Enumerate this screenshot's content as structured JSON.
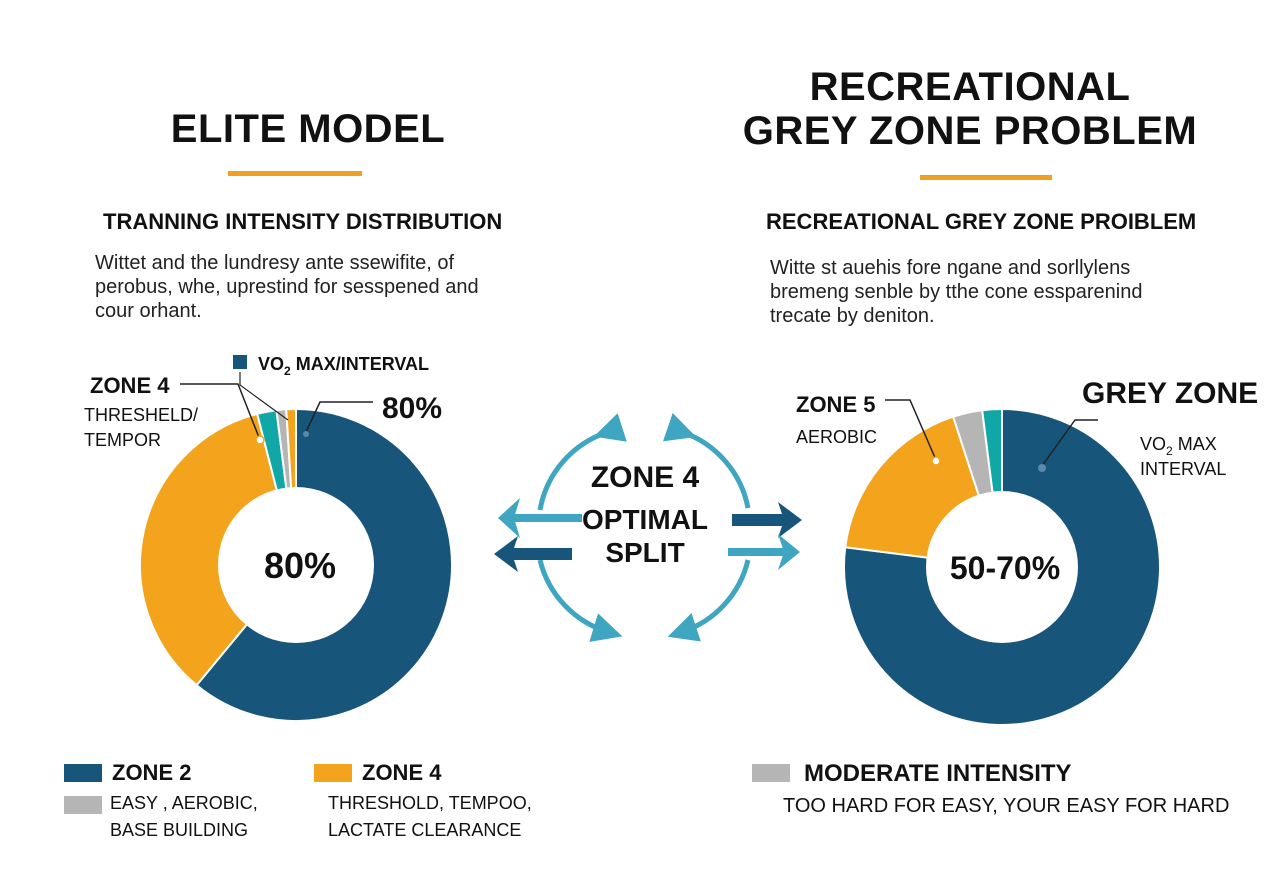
{
  "left": {
    "title": "ELITE MODEL",
    "subtitle": "TRANNING INTENSITY DISTRIBUTION",
    "description": [
      "Wittet and the lundresy ante ssewifite, of",
      "perobus, whe, uprestind for sesspened and",
      "cour orhant."
    ]
  },
  "right": {
    "title_line1": "RECREATIONAL",
    "title_line2": "GREY ZONE PROBLEM",
    "subtitle": "RECREATIONAL GREY ZONE PROIBLEM",
    "description": [
      "Witte st auehis fore ngane and sorllylens",
      "bremeng senble by tthe cone essparenind",
      "trecate by deniton."
    ]
  },
  "center": {
    "line1": "ZONE 4",
    "line2": "OPTIMAL",
    "line3": "SPLIT"
  },
  "chart_data": [
    {
      "type": "pie",
      "variant": "donut",
      "center_label": "80%",
      "slices": [
        {
          "label": "Zone 2",
          "value": 61,
          "color": "#17557a"
        },
        {
          "label": "Zone 4",
          "value": 35,
          "color": "#f3a41c"
        },
        {
          "label": "VO2 max/interval",
          "value": 2,
          "color": "#12a7a7"
        },
        {
          "label": "",
          "value": 1,
          "color": "#b5b5b5"
        },
        {
          "label": "",
          "value": 1,
          "color": "#f3a41c"
        }
      ],
      "annotations": {
        "zone_label": "ZONE 4",
        "zone_sub1": "THRESHELD/",
        "zone_sub2": "TEMPOR",
        "legend_top_pre": "VO",
        "legend_top_sub": "2",
        "legend_top_post": " MAX/INTERVAL",
        "value_label": "80%"
      }
    },
    {
      "type": "pie",
      "variant": "donut",
      "center_label": "50-70%",
      "slices": [
        {
          "label": "VO2 max interval",
          "value": 77,
          "color": "#17557a"
        },
        {
          "label": "Zone 5 aerobic",
          "value": 18,
          "color": "#f3a41c"
        },
        {
          "label": "Moderate intensity",
          "value": 3,
          "color": "#b5b5b5"
        },
        {
          "label": "",
          "value": 2,
          "color": "#12a7a7"
        }
      ],
      "annotations": {
        "zone_label": "ZONE 5",
        "zone_sub": "AEROBIC",
        "grey_zone": "GREY ZONE",
        "vo2_pre": "VO",
        "vo2_sub": "2",
        "vo2_post": " MAX",
        "vo2_line2": "INTERVAL"
      }
    }
  ],
  "legend_left": [
    {
      "name": "ZONE 2",
      "color": "#17557a"
    },
    {
      "name": "",
      "color": "#b5b5b5",
      "line1": "EASY , AEROBIC,",
      "line2": "BASE BUILDING"
    },
    {
      "name": "ZONE 4",
      "color": "#f3a41c",
      "line1": "THRESHOLD, TEMPOO,",
      "line2": "LACTATE CLEARANCE"
    }
  ],
  "legend_right": {
    "name": "MODERATE INTENSITY",
    "color": "#b5b5b5",
    "text": "TOO HARD FOR EASY, YOUR EASY FOR HARD"
  },
  "colors": {
    "accent": "#f0a020",
    "navy": "#17557a",
    "teal": "#3ea6c0",
    "grey": "#b5b5b5"
  }
}
